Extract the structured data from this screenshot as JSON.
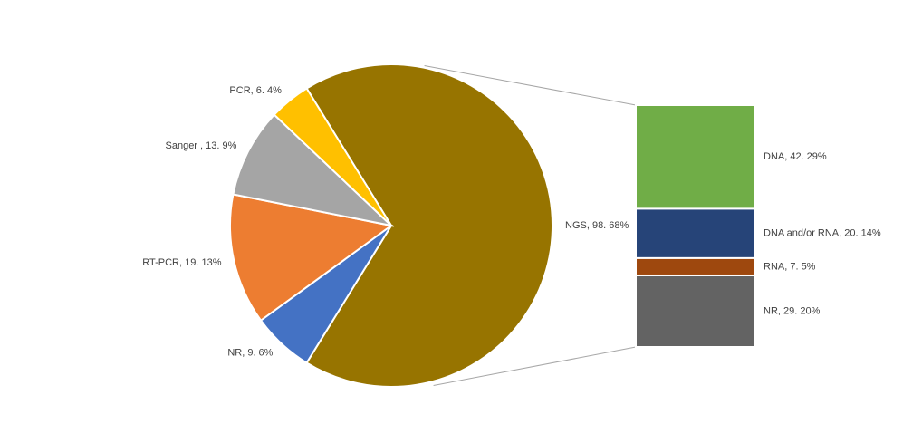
{
  "chart_data": {
    "type": "bar-of-pie",
    "categories": [
      "NGS",
      "NR",
      "RT-PCR",
      "Sanger",
      "PCR"
    ],
    "values": [
      98,
      9,
      19,
      13,
      6
    ],
    "value_labels": [
      "NGS, 98. 68%",
      "NR, 9. 6%",
      "RT-PCR, 19. 13%",
      "Sanger , 13. 9%",
      "PCR, 6. 4%"
    ],
    "colors": [
      "#977400",
      "#4472c4",
      "#ed7d31",
      "#a5a5a5",
      "#ffc000"
    ],
    "bar": {
      "categories": [
        "DNA",
        "DNA and/or RNA",
        "RNA",
        "NR"
      ],
      "values": [
        42,
        20,
        7,
        29
      ],
      "value_labels": [
        "DNA, 42. 29%",
        "DNA and/or RNA, 20. 14%",
        "RNA, 7. 5%",
        "NR, 29. 20%"
      ],
      "colors": [
        "#70ad47",
        "#264478",
        "#9e480e",
        "#636363"
      ]
    }
  }
}
